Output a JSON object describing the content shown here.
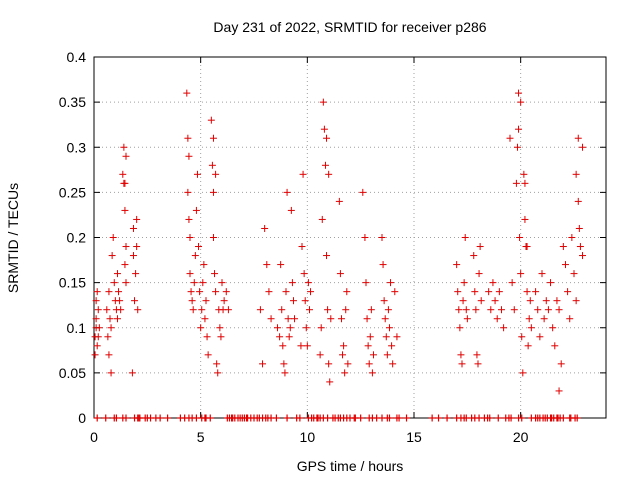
{
  "chart_data": {
    "type": "scatter",
    "title": "Day 231 of 2022, SRMTID for receiver p286",
    "xlabel": "GPS time / hours",
    "ylabel": "SRMTID / TECUs",
    "xlim": [
      0,
      24
    ],
    "ylim": [
      0,
      0.4
    ],
    "xticks": [
      0,
      5,
      10,
      15,
      20
    ],
    "xtick_labels": [
      "0",
      "5",
      "10",
      "15",
      "20"
    ],
    "yticks": [
      0,
      0.05,
      0.1,
      0.15,
      0.2,
      0.25,
      0.3,
      0.35,
      0.4
    ],
    "ytick_labels": [
      "0",
      "0.05",
      "0.1",
      "0.15",
      "0.2",
      "0.25",
      "0.3",
      "0.35",
      "0.4"
    ],
    "grid": true,
    "marker": "+",
    "color": "#e00000",
    "series": [
      {
        "name": "SRMTID",
        "x": [
          0.05,
          0.05,
          0.1,
          0.1,
          0.1,
          0.15,
          0.15,
          0.2,
          0.2,
          0.25,
          0.6,
          0.65,
          0.7,
          0.7,
          0.75,
          0.8,
          0.8,
          0.85,
          0.9,
          0.95,
          1.0,
          1.05,
          1.1,
          1.1,
          1.15,
          1.2,
          1.25,
          1.35,
          1.4,
          1.4,
          1.45,
          1.45,
          1.5,
          1.5,
          1.8,
          1.85,
          1.85,
          1.9,
          1.95,
          2.0,
          2.0,
          2.05,
          4.35,
          4.4,
          4.4,
          4.45,
          4.5,
          4.5,
          4.55,
          4.6,
          4.65,
          4.7,
          4.75,
          4.8,
          4.85,
          4.9,
          4.95,
          5.0,
          5.05,
          5.1,
          5.15,
          5.2,
          5.25,
          5.3,
          5.35,
          5.5,
          5.55,
          5.6,
          5.6,
          5.65,
          5.7,
          5.75,
          5.8,
          5.85,
          5.9,
          5.95,
          6.0,
          6.05,
          6.1,
          6.2,
          6.3,
          7.8,
          7.9,
          8.0,
          8.1,
          8.2,
          8.3,
          8.6,
          8.7,
          8.75,
          8.8,
          8.85,
          8.9,
          8.95,
          9.0,
          9.05,
          9.1,
          9.15,
          9.2,
          9.25,
          9.3,
          9.35,
          9.4,
          9.7,
          9.75,
          9.8,
          9.85,
          9.9,
          9.95,
          10.0,
          10.05,
          10.1,
          10.15,
          10.6,
          10.65,
          10.7,
          10.75,
          10.8,
          10.85,
          10.9,
          10.95,
          11.0,
          11.05,
          11.1,
          11.5,
          11.55,
          11.6,
          11.65,
          11.7,
          11.75,
          11.8,
          11.85,
          11.9,
          12.6,
          12.7,
          12.75,
          12.8,
          12.85,
          12.9,
          12.95,
          13.0,
          13.05,
          13.1,
          13.5,
          13.55,
          13.6,
          13.65,
          13.7,
          13.75,
          13.8,
          13.85,
          13.9,
          13.95,
          14.0,
          14.1,
          14.2,
          17.0,
          17.05,
          17.1,
          17.15,
          17.2,
          17.25,
          17.3,
          17.35,
          17.4,
          17.45,
          17.5,
          17.8,
          17.85,
          17.9,
          17.95,
          18.0,
          18.05,
          18.1,
          18.15,
          18.5,
          18.6,
          18.7,
          18.8,
          18.9,
          19.0,
          19.1,
          19.2,
          19.5,
          19.6,
          19.7,
          19.8,
          19.85,
          19.9,
          19.95,
          20.0,
          20.05,
          20.1,
          20.15,
          20.2,
          20.25,
          20.3,
          20.35,
          20.4,
          20.45,
          20.5,
          20.7,
          20.8,
          20.9,
          21.0,
          21.1,
          21.2,
          21.3,
          21.4,
          21.5,
          21.6,
          21.7,
          21.8,
          21.9,
          22.0,
          22.1,
          22.2,
          22.3,
          22.4,
          22.5,
          22.6,
          22.7,
          22.8,
          22.9,
          19.9,
          20.0,
          20.2,
          20.3,
          22.6,
          22.7,
          22.75,
          4.45,
          4.5,
          5.6,
          5.7,
          10.9,
          11.0,
          1.5,
          1.45,
          21.8,
          22.9
        ],
        "y": [
          0.07,
          0.09,
          0.11,
          0.13,
          0.1,
          0.08,
          0.14,
          0.12,
          0.09,
          0.1,
          0.12,
          0.09,
          0.14,
          0.07,
          0.11,
          0.05,
          0.1,
          0.18,
          0.2,
          0.15,
          0.13,
          0.12,
          0.16,
          0.11,
          0.14,
          0.13,
          0.12,
          0.27,
          0.3,
          0.26,
          0.23,
          0.17,
          0.15,
          0.19,
          0.05,
          0.21,
          0.18,
          0.13,
          0.16,
          0.22,
          0.19,
          0.12,
          0.36,
          0.31,
          0.25,
          0.22,
          0.2,
          0.16,
          0.14,
          0.13,
          0.12,
          0.15,
          0.18,
          0.23,
          0.27,
          0.19,
          0.14,
          0.1,
          0.12,
          0.15,
          0.17,
          0.11,
          0.13,
          0.09,
          0.07,
          0.33,
          0.28,
          0.25,
          0.2,
          0.16,
          0.14,
          0.06,
          0.05,
          0.12,
          0.1,
          0.09,
          0.15,
          0.12,
          0.13,
          0.14,
          0.12,
          0.12,
          0.06,
          0.21,
          0.17,
          0.14,
          0.11,
          0.1,
          0.09,
          0.17,
          0.12,
          0.08,
          0.06,
          0.05,
          0.14,
          0.25,
          0.11,
          0.09,
          0.1,
          0.23,
          0.15,
          0.13,
          0.11,
          0.08,
          0.19,
          0.27,
          0.16,
          0.13,
          0.1,
          0.08,
          0.15,
          0.12,
          0.14,
          0.07,
          0.1,
          0.22,
          0.35,
          0.32,
          0.28,
          0.18,
          0.12,
          0.06,
          0.04,
          0.11,
          0.24,
          0.16,
          0.11,
          0.07,
          0.08,
          0.05,
          0.12,
          0.14,
          0.06,
          0.25,
          0.2,
          0.15,
          0.11,
          0.08,
          0.06,
          0.09,
          0.12,
          0.05,
          0.07,
          0.2,
          0.17,
          0.13,
          0.11,
          0.09,
          0.07,
          0.12,
          0.1,
          0.15,
          0.08,
          0.06,
          0.14,
          0.09,
          0.17,
          0.14,
          0.12,
          0.1,
          0.07,
          0.06,
          0.13,
          0.15,
          0.2,
          0.12,
          0.11,
          0.18,
          0.14,
          0.12,
          0.07,
          0.06,
          0.16,
          0.19,
          0.13,
          0.14,
          0.12,
          0.15,
          0.13,
          0.11,
          0.14,
          0.12,
          0.1,
          0.31,
          0.15,
          0.12,
          0.26,
          0.3,
          0.32,
          0.2,
          0.16,
          0.09,
          0.05,
          0.27,
          0.22,
          0.19,
          0.14,
          0.08,
          0.11,
          0.13,
          0.1,
          0.14,
          0.12,
          0.09,
          0.16,
          0.11,
          0.13,
          0.12,
          0.15,
          0.1,
          0.08,
          0.13,
          0.12,
          0.06,
          0.19,
          0.17,
          0.14,
          0.11,
          0.2,
          0.16,
          0.13,
          0.24,
          0.19,
          0.3,
          0.36,
          0.35,
          0.26,
          0.19,
          0.27,
          0.31,
          0.21,
          0.29,
          0.2,
          0.31,
          0.27,
          0.31,
          0.27,
          0.29,
          0.26,
          0.03,
          0.18
        ],
        "zero_x": [
          0.15,
          0.55,
          0.95,
          1.05,
          1.35,
          1.5,
          1.9,
          2.05,
          2.1,
          2.15,
          2.4,
          2.5,
          2.65,
          2.9,
          3.1,
          3.45,
          4.05,
          4.25,
          4.45,
          4.6,
          4.8,
          5.05,
          5.2,
          5.25,
          5.45,
          6.25,
          6.35,
          6.45,
          6.5,
          6.6,
          6.75,
          6.85,
          6.95,
          7.05,
          7.15,
          7.2,
          7.35,
          7.5,
          7.65,
          7.75,
          7.9,
          8.05,
          8.15,
          8.3,
          8.55,
          9.05,
          9.5,
          9.65,
          10.05,
          10.2,
          10.3,
          10.45,
          10.5,
          10.6,
          10.75,
          10.95,
          11.2,
          11.3,
          11.45,
          11.55,
          11.7,
          11.85,
          12.0,
          12.2,
          12.25,
          12.5,
          12.9,
          13.05,
          13.25,
          13.5,
          13.75,
          13.85,
          14.2,
          14.3,
          14.65,
          15.85,
          16.15,
          16.55,
          17.0,
          17.2,
          17.35,
          17.45,
          17.7,
          17.85,
          18.05,
          18.3,
          18.45,
          18.55,
          18.95,
          19.3,
          19.45,
          19.55,
          19.9,
          20.05,
          20.5,
          20.7,
          20.8,
          20.9,
          21.05,
          21.15,
          21.25,
          21.4,
          21.45,
          21.55,
          21.7,
          21.75,
          21.85,
          22.0,
          22.3,
          22.35,
          22.55,
          22.65
        ]
      }
    ]
  }
}
